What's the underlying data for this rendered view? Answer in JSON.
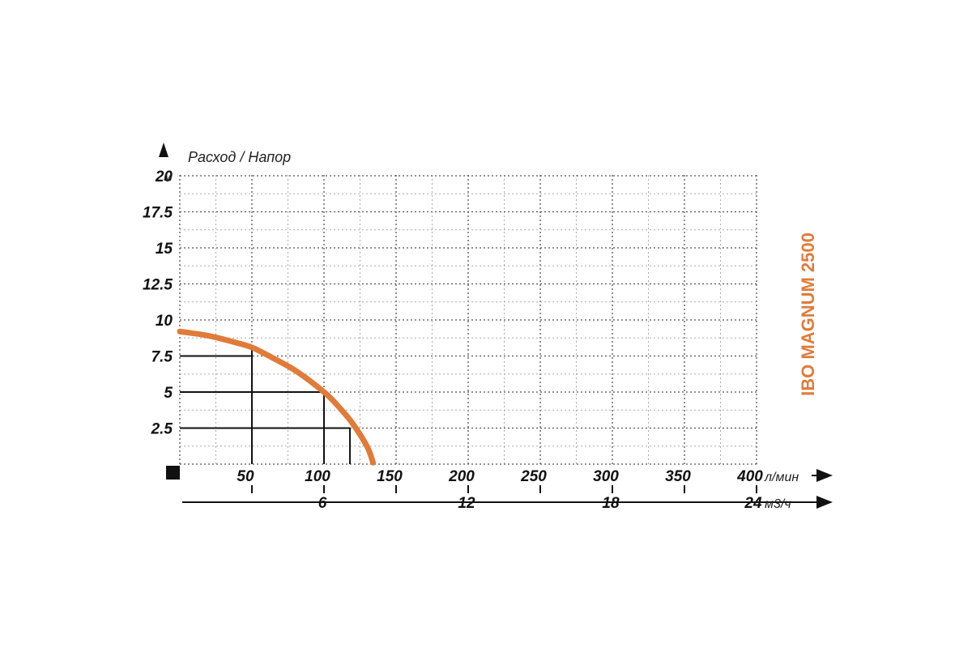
{
  "chart_data": {
    "type": "line",
    "title": "IBO MAGNUM 2500",
    "ylabel": "Расход / Напор",
    "y_unit": "м",
    "x_unit": "л/мин",
    "x2_unit": "м3/ч",
    "y_ticks": [
      "2.5",
      "5",
      "7.5",
      "10",
      "12.5",
      "15",
      "17.5",
      "20"
    ],
    "y_tick_values": [
      2.5,
      5,
      7.5,
      10,
      12.5,
      15,
      17.5,
      20
    ],
    "x_ticks": [
      "50",
      "100",
      "150",
      "200",
      "250",
      "300",
      "350",
      "400"
    ],
    "x_tick_values": [
      50,
      100,
      150,
      200,
      250,
      300,
      350,
      400
    ],
    "x2_ticks": [
      "6",
      "12",
      "18",
      "24"
    ],
    "x2_tick_values": [
      100,
      200,
      300,
      400
    ],
    "xlim": [
      0,
      400
    ],
    "ylim": [
      0,
      20
    ],
    "grid": true,
    "line_color": "#e07b39",
    "series": [
      {
        "x": [
          0,
          20,
          40,
          50,
          60,
          80,
          100,
          110,
          120,
          130,
          134
        ],
        "y": [
          9.2,
          8.9,
          8.4,
          8.1,
          7.6,
          6.5,
          5.0,
          4.0,
          2.8,
          1.2,
          0.1
        ]
      }
    ],
    "reference_points": [
      {
        "x": 50,
        "y": 7.5
      },
      {
        "x": 100,
        "y": 5
      },
      {
        "x": 118,
        "y": 2.5
      }
    ]
  }
}
